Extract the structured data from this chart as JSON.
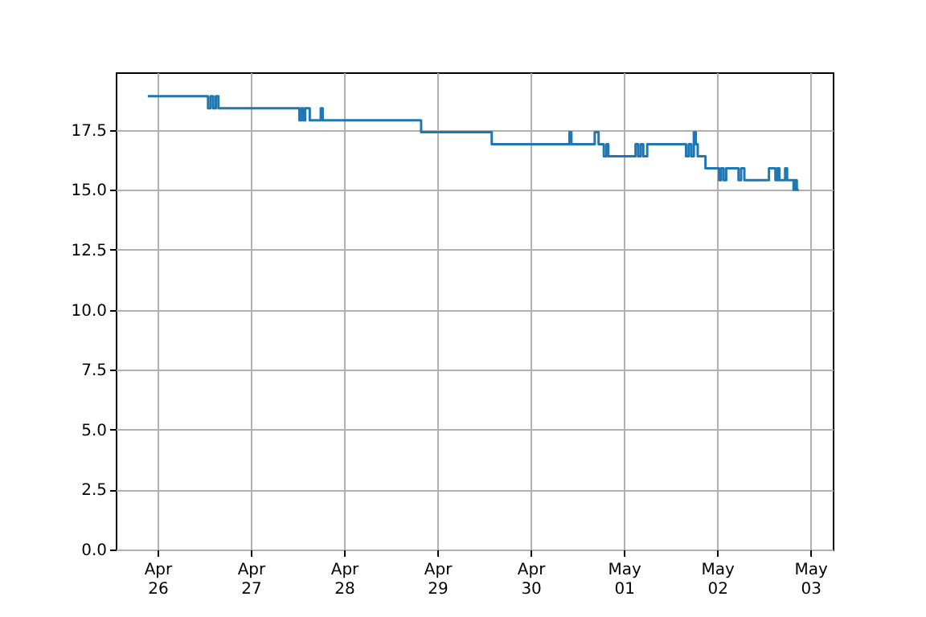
{
  "chart_data": {
    "type": "step",
    "color": "#1f77b4",
    "grid": true,
    "x": [
      "--04-25T21:30",
      "--04-26T13:00",
      "--04-26T13:40",
      "--04-26T14:20",
      "--04-26T15:00",
      "--04-26T15:40",
      "--04-27T12:30",
      "--04-27T13:00",
      "--04-27T13:30",
      "--04-27T14:00",
      "--04-27T15:10",
      "--04-27T18:00",
      "--04-27T18:30",
      "--04-28T19:50",
      "--04-29T14:00",
      "--04-30T10:00",
      "--04-30T10:30",
      "--04-30T16:30",
      "--04-30T17:30",
      "--04-30T18:50",
      "--04-30T19:30",
      "--04-30T20:00",
      "--05-01T03:00",
      "--05-01T03:40",
      "--05-01T04:20",
      "--05-01T05:00",
      "--05-01T06:00",
      "--05-01T16:00",
      "--05-01T16:40",
      "--05-01T17:20",
      "--05-01T18:00",
      "--05-01T18:30",
      "--05-01T19:00",
      "--05-01T21:00",
      "--05-02T00:30",
      "--05-02T01:00",
      "--05-02T01:40",
      "--05-02T02:20",
      "--05-02T05:30",
      "--05-02T06:10",
      "--05-02T07:00",
      "--05-02T13:20",
      "--05-02T15:00",
      "--05-02T15:30",
      "--05-02T16:00",
      "--05-02T17:30",
      "--05-02T18:00",
      "--05-02T19:40",
      "--05-02T20:00",
      "--05-02T20:30",
      "--05-02T21:00"
    ],
    "values": [
      18.9,
      18.4,
      18.9,
      18.4,
      18.9,
      18.4,
      17.9,
      18.4,
      17.9,
      18.4,
      17.9,
      18.4,
      17.9,
      17.4,
      16.9,
      17.4,
      16.9,
      17.4,
      16.9,
      16.4,
      16.9,
      16.4,
      16.9,
      16.4,
      16.9,
      16.4,
      16.9,
      16.4,
      16.9,
      16.4,
      17.4,
      16.9,
      16.4,
      15.9,
      15.4,
      15.9,
      15.4,
      15.9,
      15.4,
      15.9,
      15.4,
      15.9,
      15.4,
      15.9,
      15.4,
      15.9,
      15.4,
      15.0,
      15.4,
      15.0,
      15.0
    ],
    "xlim": [
      "--04-25T13:15",
      "--05-03T05:45"
    ],
    "xticks": [
      {
        "value": "--04-26",
        "label": "Apr 26"
      },
      {
        "value": "--04-27",
        "label": "Apr 27"
      },
      {
        "value": "--04-28",
        "label": "Apr 28"
      },
      {
        "value": "--04-29",
        "label": "Apr 29"
      },
      {
        "value": "--04-30",
        "label": "Apr 30"
      },
      {
        "value": "--05-01",
        "label": "May 01"
      },
      {
        "value": "--05-02",
        "label": "May 02"
      },
      {
        "value": "--05-03",
        "label": "May 03"
      }
    ],
    "ylim": [
      0,
      19.9
    ],
    "yticks": [
      {
        "value": 0,
        "label": "0.0"
      },
      {
        "value": 2.5,
        "label": "2.5"
      },
      {
        "value": 5,
        "label": "5.0"
      },
      {
        "value": 7.5,
        "label": "7.5"
      },
      {
        "value": 10,
        "label": "10.0"
      },
      {
        "value": 12.5,
        "label": "12.5"
      },
      {
        "value": 15,
        "label": "15.0"
      },
      {
        "value": 17.5,
        "label": "17.5"
      }
    ]
  }
}
